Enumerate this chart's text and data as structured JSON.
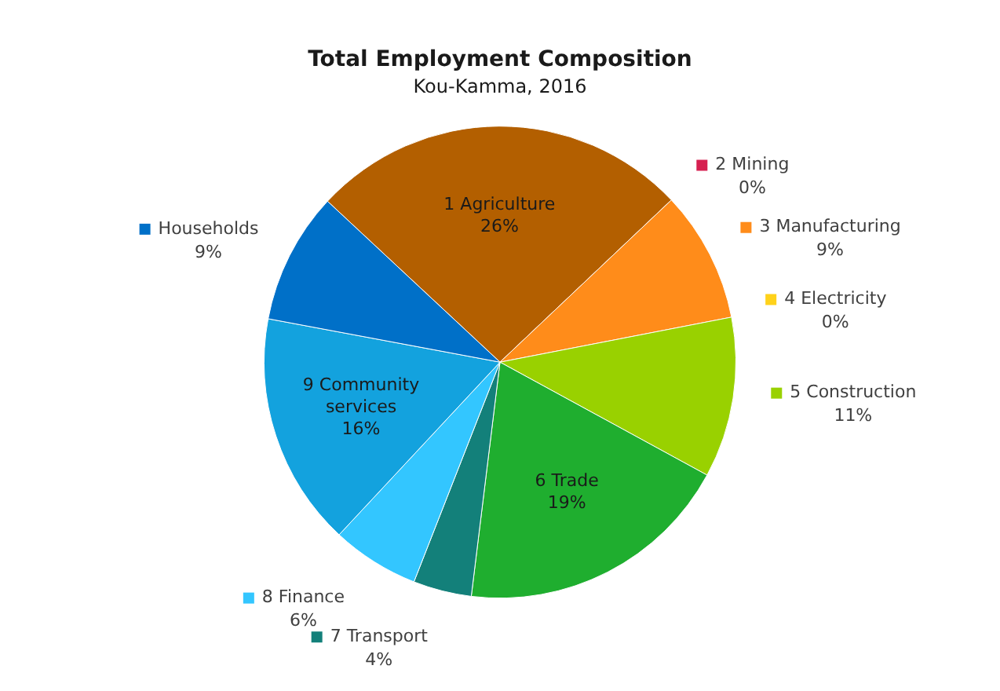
{
  "chart_data": {
    "type": "pie",
    "title": "Total Employment Composition",
    "subtitle": "Kou-Kamma, 2016",
    "categories": [
      "1 Agriculture",
      "2 Mining",
      "3 Manufacturing",
      "4 Electricity",
      "5 Construction",
      "6 Trade",
      "7 Transport",
      "8 Finance",
      "9 Community services",
      "Households"
    ],
    "values": [
      26,
      0,
      9,
      0,
      11,
      19,
      4,
      6,
      16,
      9
    ],
    "value_labels": [
      "26%",
      "0%",
      "9%",
      "0%",
      "11%",
      "19%",
      "4%",
      "6%",
      "16%",
      "9%"
    ],
    "colors": [
      "#b35f00",
      "#d62050",
      "#ff8c1a",
      "#ffd21a",
      "#99d100",
      "#1fae2f",
      "#13807a",
      "#33c6ff",
      "#13a2de",
      "#0070c8"
    ],
    "legend": "right"
  }
}
